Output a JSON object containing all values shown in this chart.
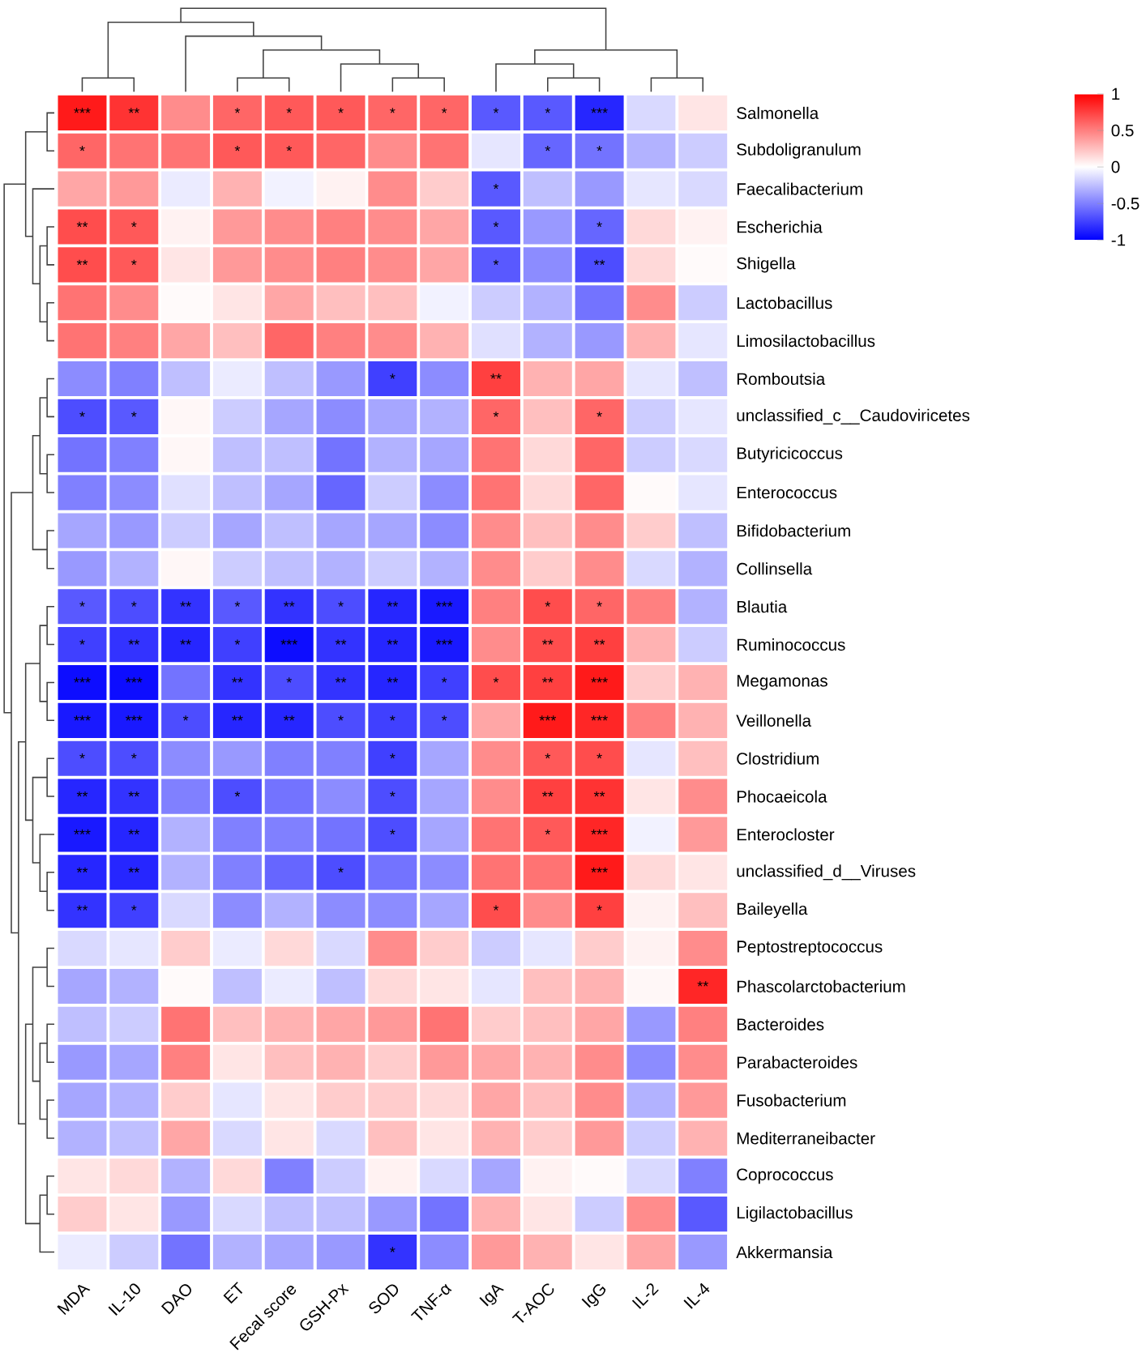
{
  "chart_data": {
    "type": "heatmap",
    "categories": [
      "MDA",
      "IL-10",
      "DAO",
      "ET",
      "Fecal score",
      "GSH-Px",
      "SOD",
      "TNF-α",
      "IgA",
      "T-AOC",
      "IgG",
      "IL-2",
      "IL-4"
    ],
    "y_categories": [
      "Salmonella",
      "Subdoligranulum",
      "Faecalibacterium",
      "Escherichia",
      "Shigella",
      "Lactobacillus",
      "Limosilactobacillus",
      "Romboutsia",
      "unclassified_c__Caudoviricetes",
      "Butyricicoccus",
      "Enterococcus",
      "Bifidobacterium",
      "Collinsella",
      "Blautia",
      "Ruminococcus",
      "Megamonas",
      "Veillonella",
      "Clostridium",
      "Phocaeicola",
      "Enterocloster",
      "unclassified_d__Viruses",
      "Baileyella",
      "Peptostreptococcus",
      "Phascolarctobacterium",
      "Bacteroides",
      "Parabacteroides",
      "Fusobacterium",
      "Mediterraneibacter",
      "Coprococcus",
      "Ligilactobacillus",
      "Akkermansia"
    ],
    "cells": [
      [
        0.9,
        0.8,
        0.45,
        0.6,
        0.65,
        0.65,
        0.6,
        0.6,
        -0.65,
        -0.65,
        -0.85,
        -0.15,
        0.1
      ],
      [
        0.6,
        0.55,
        0.55,
        0.65,
        0.65,
        0.6,
        0.45,
        0.55,
        -0.1,
        -0.6,
        -0.55,
        -0.3,
        -0.2
      ],
      [
        0.35,
        0.4,
        -0.08,
        0.3,
        -0.05,
        0.05,
        0.45,
        0.2,
        -0.65,
        -0.25,
        -0.4,
        -0.1,
        -0.15
      ],
      [
        0.7,
        0.65,
        0.05,
        0.4,
        0.45,
        0.5,
        0.45,
        0.35,
        -0.65,
        -0.4,
        -0.6,
        0.15,
        0.05
      ],
      [
        0.7,
        0.65,
        0.1,
        0.4,
        0.45,
        0.5,
        0.45,
        0.35,
        -0.65,
        -0.45,
        -0.7,
        0.15,
        0.02
      ],
      [
        0.55,
        0.45,
        0.02,
        0.1,
        0.35,
        0.25,
        0.25,
        -0.05,
        -0.2,
        -0.3,
        -0.55,
        0.45,
        -0.2
      ],
      [
        0.55,
        0.5,
        0.35,
        0.25,
        0.6,
        0.5,
        0.45,
        0.3,
        -0.12,
        -0.3,
        -0.4,
        0.3,
        -0.1
      ],
      [
        -0.45,
        -0.5,
        -0.25,
        -0.08,
        -0.25,
        -0.4,
        -0.75,
        -0.45,
        0.75,
        0.3,
        0.35,
        -0.1,
        -0.25
      ],
      [
        -0.7,
        -0.65,
        0.03,
        -0.2,
        -0.35,
        -0.45,
        -0.35,
        -0.3,
        0.6,
        0.25,
        0.6,
        -0.2,
        -0.1
      ],
      [
        -0.55,
        -0.5,
        0.03,
        -0.25,
        -0.25,
        -0.55,
        -0.3,
        -0.35,
        0.55,
        0.15,
        0.6,
        -0.2,
        -0.15
      ],
      [
        -0.5,
        -0.45,
        -0.12,
        -0.25,
        -0.35,
        -0.6,
        -0.2,
        -0.45,
        0.55,
        0.15,
        0.6,
        0.02,
        -0.1
      ],
      [
        -0.35,
        -0.4,
        -0.2,
        -0.35,
        -0.25,
        -0.35,
        -0.35,
        -0.45,
        0.45,
        0.25,
        0.45,
        0.2,
        -0.25
      ],
      [
        -0.4,
        -0.3,
        0.03,
        -0.2,
        -0.25,
        -0.3,
        -0.2,
        -0.3,
        0.45,
        0.2,
        0.45,
        -0.15,
        -0.3
      ],
      [
        -0.65,
        -0.7,
        -0.8,
        -0.65,
        -0.8,
        -0.7,
        -0.85,
        -0.9,
        0.5,
        0.7,
        0.6,
        0.5,
        -0.3
      ],
      [
        -0.75,
        -0.8,
        -0.85,
        -0.75,
        -0.95,
        -0.8,
        -0.85,
        -0.9,
        0.45,
        0.7,
        0.75,
        0.3,
        -0.2
      ],
      [
        -0.95,
        -0.95,
        -0.55,
        -0.8,
        -0.7,
        -0.8,
        -0.85,
        -0.75,
        0.7,
        0.75,
        0.9,
        0.2,
        0.3
      ],
      [
        -0.9,
        -0.9,
        -0.7,
        -0.85,
        -0.85,
        -0.7,
        -0.75,
        -0.7,
        0.35,
        0.9,
        0.85,
        0.5,
        0.3
      ],
      [
        -0.7,
        -0.7,
        -0.45,
        -0.4,
        -0.5,
        -0.5,
        -0.75,
        -0.35,
        0.45,
        0.65,
        0.7,
        -0.1,
        0.25
      ],
      [
        -0.85,
        -0.8,
        -0.5,
        -0.7,
        -0.55,
        -0.45,
        -0.7,
        -0.35,
        0.45,
        0.75,
        0.8,
        0.1,
        0.45
      ],
      [
        -0.9,
        -0.85,
        -0.3,
        -0.5,
        -0.5,
        -0.55,
        -0.7,
        -0.35,
        0.55,
        0.65,
        0.85,
        -0.05,
        0.4
      ],
      [
        -0.85,
        -0.85,
        -0.3,
        -0.5,
        -0.6,
        -0.7,
        -0.55,
        -0.45,
        0.55,
        0.55,
        0.9,
        0.15,
        0.1
      ],
      [
        -0.8,
        -0.75,
        -0.15,
        -0.45,
        -0.3,
        -0.45,
        -0.45,
        -0.35,
        0.7,
        0.45,
        0.75,
        0.05,
        0.25
      ],
      [
        -0.15,
        -0.1,
        0.2,
        -0.08,
        0.15,
        -0.15,
        0.45,
        0.2,
        -0.2,
        -0.1,
        0.2,
        0.05,
        0.45
      ],
      [
        -0.35,
        -0.3,
        0.02,
        -0.25,
        -0.08,
        -0.25,
        0.15,
        0.1,
        -0.1,
        0.25,
        0.3,
        0.03,
        0.85
      ],
      [
        -0.25,
        -0.2,
        0.55,
        0.25,
        0.3,
        0.35,
        0.4,
        0.55,
        0.2,
        0.25,
        0.35,
        -0.4,
        0.5
      ],
      [
        -0.4,
        -0.35,
        0.5,
        0.1,
        0.25,
        0.3,
        0.2,
        0.4,
        0.35,
        0.3,
        0.45,
        -0.45,
        0.45
      ],
      [
        -0.35,
        -0.3,
        0.2,
        -0.1,
        0.1,
        0.2,
        0.2,
        0.15,
        0.35,
        0.25,
        0.45,
        -0.3,
        0.4
      ],
      [
        -0.3,
        -0.25,
        0.35,
        -0.15,
        0.1,
        -0.15,
        0.25,
        0.1,
        0.3,
        0.2,
        0.4,
        -0.2,
        0.3
      ],
      [
        0.1,
        0.15,
        -0.3,
        0.15,
        -0.5,
        -0.2,
        0.05,
        -0.15,
        -0.35,
        0.05,
        0.02,
        -0.15,
        -0.5
      ],
      [
        0.2,
        0.1,
        -0.4,
        -0.15,
        -0.25,
        -0.25,
        -0.4,
        -0.55,
        0.3,
        0.1,
        -0.2,
        0.45,
        -0.65
      ],
      [
        -0.08,
        -0.2,
        -0.55,
        -0.3,
        -0.35,
        -0.4,
        -0.8,
        -0.45,
        0.4,
        0.3,
        0.1,
        0.35,
        -0.4
      ]
    ],
    "cell_labels": [
      [
        "***",
        "**",
        null,
        "*",
        "*",
        "*",
        "*",
        "*",
        "*",
        "*",
        "***",
        null,
        null
      ],
      [
        "*",
        null,
        null,
        "*",
        "*",
        null,
        null,
        null,
        null,
        "*",
        "*",
        null,
        null
      ],
      [
        null,
        null,
        null,
        null,
        null,
        null,
        null,
        null,
        "*",
        null,
        null,
        null,
        null
      ],
      [
        "**",
        "*",
        null,
        null,
        null,
        null,
        null,
        null,
        "*",
        null,
        "*",
        null,
        null
      ],
      [
        "**",
        "*",
        null,
        null,
        null,
        null,
        null,
        null,
        "*",
        null,
        "**",
        null,
        null
      ],
      [
        null,
        null,
        null,
        null,
        null,
        null,
        null,
        null,
        null,
        null,
        null,
        null,
        null
      ],
      [
        null,
        null,
        null,
        null,
        null,
        null,
        null,
        null,
        null,
        null,
        null,
        null,
        null
      ],
      [
        null,
        null,
        null,
        null,
        null,
        null,
        "*",
        null,
        "**",
        null,
        null,
        null,
        null
      ],
      [
        "*",
        "*",
        null,
        null,
        null,
        null,
        null,
        null,
        "*",
        null,
        "*",
        null,
        null
      ],
      [
        null,
        null,
        null,
        null,
        null,
        null,
        null,
        null,
        null,
        null,
        null,
        null,
        null
      ],
      [
        null,
        null,
        null,
        null,
        null,
        null,
        null,
        null,
        null,
        null,
        null,
        null,
        null
      ],
      [
        null,
        null,
        null,
        null,
        null,
        null,
        null,
        null,
        null,
        null,
        null,
        null,
        null
      ],
      [
        null,
        null,
        null,
        null,
        null,
        null,
        null,
        null,
        null,
        null,
        null,
        null,
        null
      ],
      [
        "*",
        "*",
        "**",
        "*",
        "**",
        "*",
        "**",
        "***",
        null,
        "*",
        "*",
        null,
        null
      ],
      [
        "*",
        "**",
        "**",
        "*",
        "***",
        "**",
        "**",
        "***",
        null,
        "**",
        "**",
        null,
        null
      ],
      [
        "***",
        "***",
        null,
        "**",
        "*",
        "**",
        "**",
        "*",
        "*",
        "**",
        "***",
        null,
        null
      ],
      [
        "***",
        "***",
        "*",
        "**",
        "**",
        "*",
        "*",
        "*",
        null,
        "***",
        "***",
        null,
        null
      ],
      [
        "*",
        "*",
        null,
        null,
        null,
        null,
        "*",
        null,
        null,
        "*",
        "*",
        null,
        null
      ],
      [
        "**",
        "**",
        null,
        "*",
        null,
        null,
        "*",
        null,
        null,
        "**",
        "**",
        null,
        null
      ],
      [
        "***",
        "**",
        null,
        null,
        null,
        null,
        "*",
        null,
        null,
        "*",
        "***",
        null,
        null
      ],
      [
        "**",
        "**",
        null,
        null,
        null,
        "*",
        null,
        null,
        null,
        null,
        "***",
        null,
        null
      ],
      [
        "**",
        "*",
        null,
        null,
        null,
        null,
        null,
        null,
        "*",
        null,
        "*",
        null,
        null
      ],
      [
        null,
        null,
        null,
        null,
        null,
        null,
        null,
        null,
        null,
        null,
        null,
        null,
        null
      ],
      [
        null,
        null,
        null,
        null,
        null,
        null,
        null,
        null,
        null,
        null,
        null,
        null,
        "**"
      ],
      [
        null,
        null,
        null,
        null,
        null,
        null,
        null,
        null,
        null,
        null,
        null,
        null,
        null
      ],
      [
        null,
        null,
        null,
        null,
        null,
        null,
        null,
        null,
        null,
        null,
        null,
        null,
        null
      ],
      [
        null,
        null,
        null,
        null,
        null,
        null,
        null,
        null,
        null,
        null,
        null,
        null,
        null
      ],
      [
        null,
        null,
        null,
        null,
        null,
        null,
        null,
        null,
        null,
        null,
        null,
        null,
        null
      ],
      [
        null,
        null,
        null,
        null,
        null,
        null,
        null,
        null,
        null,
        null,
        null,
        null,
        null
      ],
      [
        null,
        null,
        null,
        null,
        null,
        null,
        null,
        null,
        null,
        null,
        null,
        null,
        null
      ],
      [
        null,
        null,
        null,
        null,
        null,
        null,
        "*",
        null,
        null,
        null,
        null,
        null,
        null
      ]
    ],
    "clim": [
      -1,
      1
    ],
    "cticks": [
      1,
      0.5,
      0,
      -0.5,
      -1
    ]
  }
}
